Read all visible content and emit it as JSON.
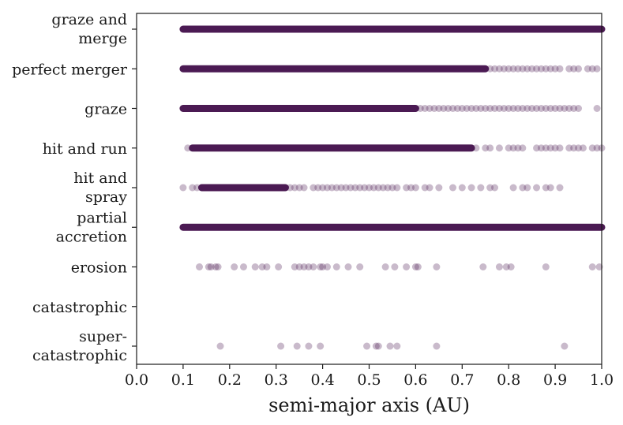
{
  "chart_data": {
    "type": "scatter",
    "title": "",
    "xlabel": "semi-major axis (AU)",
    "ylabel": "",
    "xlim": [
      0.0,
      1.0
    ],
    "x_ticks": [
      "0.0",
      "0.1",
      "0.2",
      "0.3",
      "0.4",
      "0.5",
      "0.6",
      "0.7",
      "0.8",
      "0.9",
      "1.0"
    ],
    "grid": false,
    "legend": "none",
    "marker_color": "#4b1a53",
    "marker_opacity": 0.3,
    "categories": [
      {
        "lines": [
          "graze and",
          "merge"
        ],
        "dense": [
          [
            0.1,
            1.0
          ]
        ],
        "x": []
      },
      {
        "lines": [
          "perfect merger"
        ],
        "dense": [
          [
            0.1,
            0.75
          ]
        ],
        "x": [
          0.76,
          0.77,
          0.78,
          0.79,
          0.8,
          0.81,
          0.82,
          0.83,
          0.84,
          0.85,
          0.86,
          0.87,
          0.88,
          0.89,
          0.9,
          0.91,
          0.93,
          0.94,
          0.95,
          0.97,
          0.98,
          0.99
        ]
      },
      {
        "lines": [
          "graze"
        ],
        "dense": [
          [
            0.1,
            0.6
          ]
        ],
        "x": [
          0.61,
          0.62,
          0.63,
          0.64,
          0.65,
          0.66,
          0.67,
          0.68,
          0.69,
          0.7,
          0.71,
          0.72,
          0.73,
          0.74,
          0.75,
          0.76,
          0.77,
          0.78,
          0.79,
          0.8,
          0.81,
          0.82,
          0.83,
          0.84,
          0.85,
          0.86,
          0.87,
          0.88,
          0.89,
          0.9,
          0.91,
          0.92,
          0.93,
          0.94,
          0.95,
          0.99
        ]
      },
      {
        "lines": [
          "hit and run"
        ],
        "dense": [
          [
            0.12,
            0.72
          ]
        ],
        "x": [
          0.11,
          0.73,
          0.75,
          0.76,
          0.78,
          0.8,
          0.81,
          0.82,
          0.83,
          0.86,
          0.87,
          0.88,
          0.89,
          0.9,
          0.91,
          0.93,
          0.94,
          0.95,
          0.96,
          0.98,
          0.99,
          1.0
        ]
      },
      {
        "lines": [
          "hit and",
          "spray"
        ],
        "dense": [
          [
            0.14,
            0.32
          ]
        ],
        "x": [
          0.1,
          0.12,
          0.13,
          0.33,
          0.34,
          0.35,
          0.36,
          0.38,
          0.39,
          0.4,
          0.41,
          0.42,
          0.43,
          0.44,
          0.45,
          0.46,
          0.47,
          0.48,
          0.49,
          0.5,
          0.51,
          0.52,
          0.53,
          0.54,
          0.55,
          0.56,
          0.58,
          0.59,
          0.6,
          0.62,
          0.63,
          0.65,
          0.68,
          0.7,
          0.72,
          0.74,
          0.76,
          0.77,
          0.81,
          0.83,
          0.84,
          0.86,
          0.88,
          0.89,
          0.91
        ]
      },
      {
        "lines": [
          "partial",
          "accretion"
        ],
        "dense": [
          [
            0.1,
            1.0
          ]
        ],
        "x": []
      },
      {
        "lines": [
          "erosion"
        ],
        "dense": [],
        "x": [
          0.135,
          0.155,
          0.16,
          0.17,
          0.175,
          0.21,
          0.23,
          0.255,
          0.27,
          0.28,
          0.305,
          0.34,
          0.35,
          0.36,
          0.37,
          0.38,
          0.395,
          0.4,
          0.41,
          0.43,
          0.455,
          0.48,
          0.535,
          0.555,
          0.58,
          0.6,
          0.605,
          0.645,
          0.745,
          0.78,
          0.795,
          0.805,
          0.88,
          0.98,
          0.995
        ]
      },
      {
        "lines": [
          "catastrophic"
        ],
        "dense": [],
        "x": []
      },
      {
        "lines": [
          "super-",
          "catastrophic"
        ],
        "dense": [],
        "x": [
          0.18,
          0.31,
          0.345,
          0.37,
          0.395,
          0.495,
          0.515,
          0.52,
          0.545,
          0.56,
          0.645,
          0.92
        ]
      }
    ]
  }
}
